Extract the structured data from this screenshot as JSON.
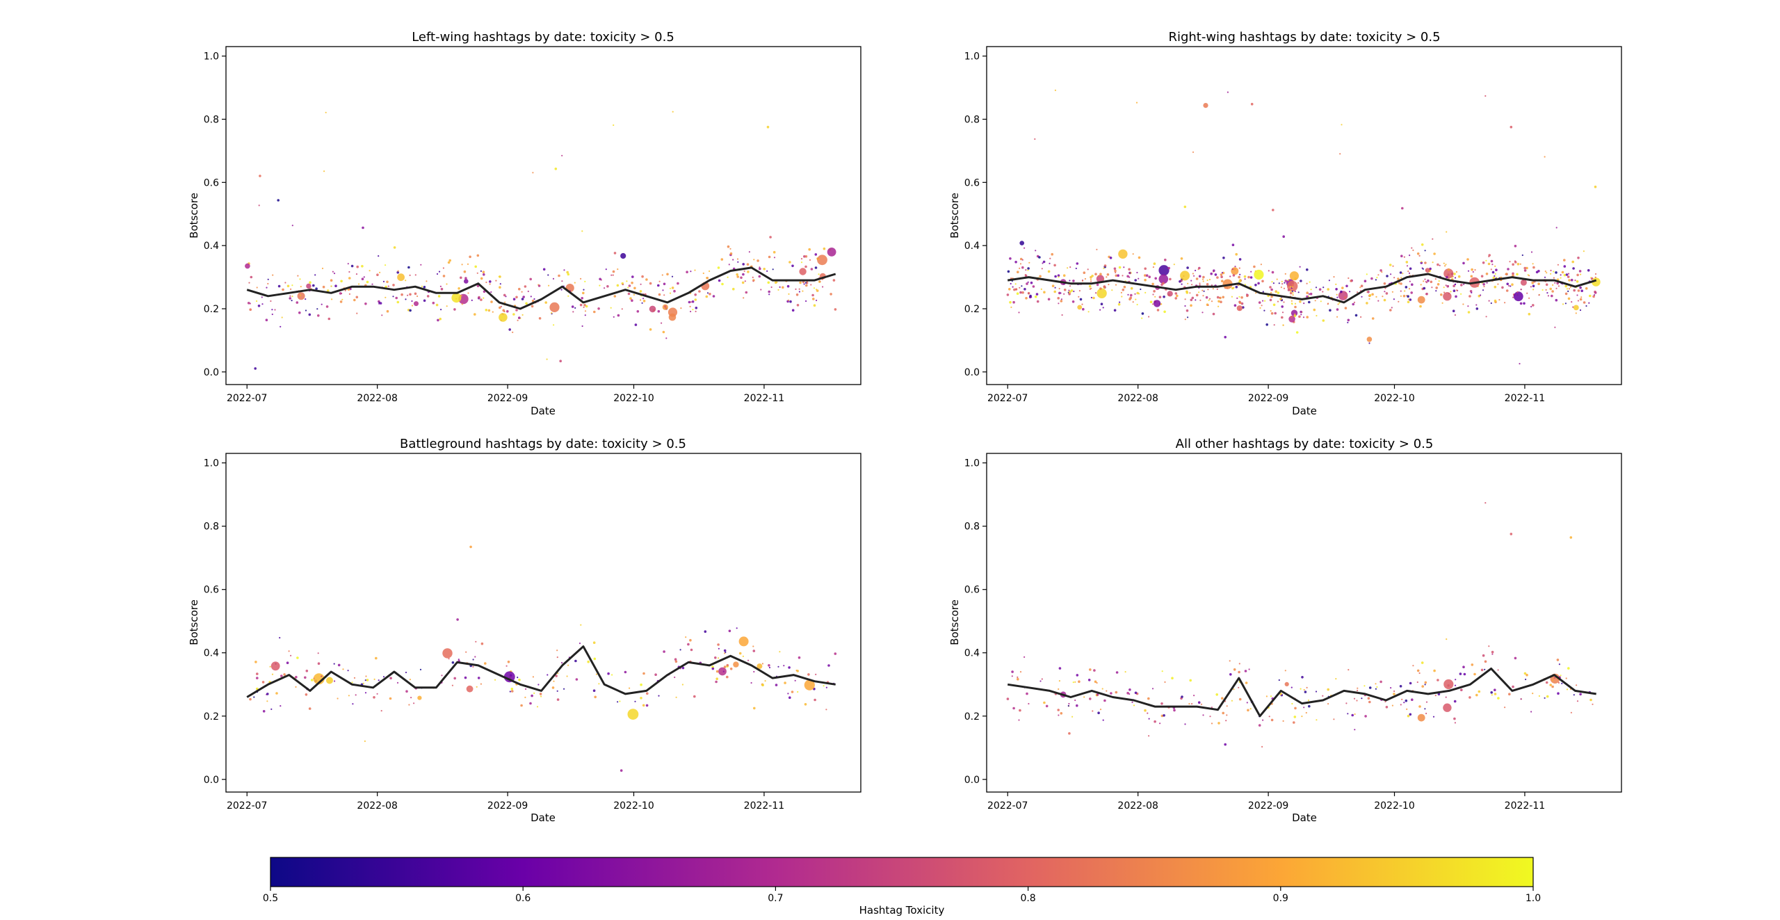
{
  "chart_data": [
    {
      "type": "scatter",
      "title": "Left-wing hashtags by date: toxicity > 0.5",
      "xlabel": "Date",
      "ylabel": "Botscore",
      "xticks": [
        "2022-07",
        "2022-08",
        "2022-09",
        "2022-10",
        "2022-11"
      ],
      "xlim": [
        "2022-06-26",
        "2022-11-24"
      ],
      "ylim": [
        -0.04,
        1.03
      ],
      "yticks": [
        "0.0",
        "0.2",
        "0.4",
        "0.6",
        "0.8",
        "1.0"
      ],
      "trend": {
        "x": [
          "2022-07-01",
          "2022-07-06",
          "2022-07-11",
          "2022-07-16",
          "2022-07-21",
          "2022-07-26",
          "2022-07-31",
          "2022-08-05",
          "2022-08-10",
          "2022-08-15",
          "2022-08-20",
          "2022-08-25",
          "2022-08-30",
          "2022-09-04",
          "2022-09-09",
          "2022-09-14",
          "2022-09-19",
          "2022-09-24",
          "2022-09-29",
          "2022-10-04",
          "2022-10-09",
          "2022-10-14",
          "2022-10-19",
          "2022-10-24",
          "2022-10-29",
          "2022-11-03",
          "2022-11-08",
          "2022-11-13",
          "2022-11-18"
        ],
        "y": [
          0.26,
          0.24,
          0.25,
          0.26,
          0.25,
          0.27,
          0.27,
          0.26,
          0.27,
          0.25,
          0.25,
          0.28,
          0.22,
          0.2,
          0.23,
          0.27,
          0.22,
          0.24,
          0.26,
          0.24,
          0.22,
          0.25,
          0.29,
          0.32,
          0.33,
          0.29,
          0.29,
          0.29,
          0.31
        ]
      }
    },
    {
      "type": "scatter",
      "title": "Right-wing hashtags by date: toxicity > 0.5",
      "xlabel": "Date",
      "ylabel": "Botscore",
      "xticks": [
        "2022-07",
        "2022-08",
        "2022-09",
        "2022-10",
        "2022-11"
      ],
      "xlim": [
        "2022-06-26",
        "2022-11-24"
      ],
      "ylim": [
        -0.04,
        1.03
      ],
      "yticks": [
        "0.0",
        "0.2",
        "0.4",
        "0.6",
        "0.8",
        "1.0"
      ],
      "trend": {
        "x": [
          "2022-07-01",
          "2022-07-06",
          "2022-07-11",
          "2022-07-16",
          "2022-07-21",
          "2022-07-26",
          "2022-07-31",
          "2022-08-05",
          "2022-08-10",
          "2022-08-15",
          "2022-08-20",
          "2022-08-25",
          "2022-08-30",
          "2022-09-04",
          "2022-09-09",
          "2022-09-14",
          "2022-09-19",
          "2022-09-24",
          "2022-09-29",
          "2022-10-04",
          "2022-10-09",
          "2022-10-14",
          "2022-10-19",
          "2022-10-24",
          "2022-10-29",
          "2022-11-03",
          "2022-11-08",
          "2022-11-13",
          "2022-11-18"
        ],
        "y": [
          0.29,
          0.3,
          0.29,
          0.28,
          0.28,
          0.29,
          0.28,
          0.27,
          0.26,
          0.27,
          0.27,
          0.28,
          0.25,
          0.24,
          0.23,
          0.24,
          0.22,
          0.26,
          0.27,
          0.3,
          0.31,
          0.29,
          0.28,
          0.29,
          0.3,
          0.29,
          0.29,
          0.27,
          0.29
        ]
      }
    },
    {
      "type": "scatter",
      "title": "Battleground hashtags by date: toxicity > 0.5",
      "xlabel": "Date",
      "ylabel": "Botscore",
      "xticks": [
        "2022-07",
        "2022-08",
        "2022-09",
        "2022-10",
        "2022-11"
      ],
      "xlim": [
        "2022-06-26",
        "2022-11-24"
      ],
      "ylim": [
        -0.04,
        1.03
      ],
      "yticks": [
        "0.0",
        "0.2",
        "0.4",
        "0.6",
        "0.8",
        "1.0"
      ],
      "trend": {
        "x": [
          "2022-07-01",
          "2022-07-06",
          "2022-07-11",
          "2022-07-16",
          "2022-07-21",
          "2022-07-26",
          "2022-07-31",
          "2022-08-05",
          "2022-08-10",
          "2022-08-15",
          "2022-08-20",
          "2022-08-25",
          "2022-08-30",
          "2022-09-04",
          "2022-09-09",
          "2022-09-14",
          "2022-09-19",
          "2022-09-24",
          "2022-09-29",
          "2022-10-04",
          "2022-10-09",
          "2022-10-14",
          "2022-10-19",
          "2022-10-24",
          "2022-10-29",
          "2022-11-03",
          "2022-11-08",
          "2022-11-13",
          "2022-11-18"
        ],
        "y": [
          0.26,
          0.3,
          0.33,
          0.28,
          0.34,
          0.3,
          0.29,
          0.34,
          0.29,
          0.29,
          0.37,
          0.36,
          0.33,
          0.3,
          0.28,
          0.36,
          0.42,
          0.3,
          0.27,
          0.28,
          0.33,
          0.37,
          0.36,
          0.39,
          0.36,
          0.32,
          0.33,
          0.31,
          0.3
        ]
      }
    },
    {
      "type": "scatter",
      "title": "All other hashtags by date: toxicity > 0.5",
      "xlabel": "Date",
      "ylabel": "Botscore",
      "xticks": [
        "2022-07",
        "2022-08",
        "2022-09",
        "2022-10",
        "2022-11"
      ],
      "xlim": [
        "2022-06-26",
        "2022-11-24"
      ],
      "ylim": [
        -0.04,
        1.03
      ],
      "yticks": [
        "0.0",
        "0.2",
        "0.4",
        "0.6",
        "0.8",
        "1.0"
      ],
      "trend": {
        "x": [
          "2022-07-01",
          "2022-07-06",
          "2022-07-11",
          "2022-07-16",
          "2022-07-21",
          "2022-07-26",
          "2022-07-31",
          "2022-08-05",
          "2022-08-10",
          "2022-08-15",
          "2022-08-20",
          "2022-08-25",
          "2022-08-30",
          "2022-09-04",
          "2022-09-09",
          "2022-09-14",
          "2022-09-19",
          "2022-09-24",
          "2022-09-29",
          "2022-10-04",
          "2022-10-09",
          "2022-10-14",
          "2022-10-19",
          "2022-10-24",
          "2022-10-29",
          "2022-11-03",
          "2022-11-08",
          "2022-11-13",
          "2022-11-18"
        ],
        "y": [
          0.3,
          0.29,
          0.28,
          0.26,
          0.28,
          0.26,
          0.25,
          0.23,
          0.23,
          0.23,
          0.22,
          0.32,
          0.2,
          0.28,
          0.24,
          0.25,
          0.28,
          0.27,
          0.25,
          0.28,
          0.27,
          0.28,
          0.3,
          0.35,
          0.28,
          0.3,
          0.33,
          0.28,
          0.27
        ]
      }
    }
  ],
  "colorbar": {
    "label": "Hashtag Toxicity",
    "ticks": [
      "0.5",
      "0.6",
      "0.7",
      "0.8",
      "0.9",
      "1.0"
    ],
    "range": [
      0.5,
      1.0
    ],
    "colormap": [
      "#0d0887",
      "#6a00a8",
      "#b12a90",
      "#e16462",
      "#fca636",
      "#f0f921"
    ]
  },
  "trend_color": "#222222"
}
